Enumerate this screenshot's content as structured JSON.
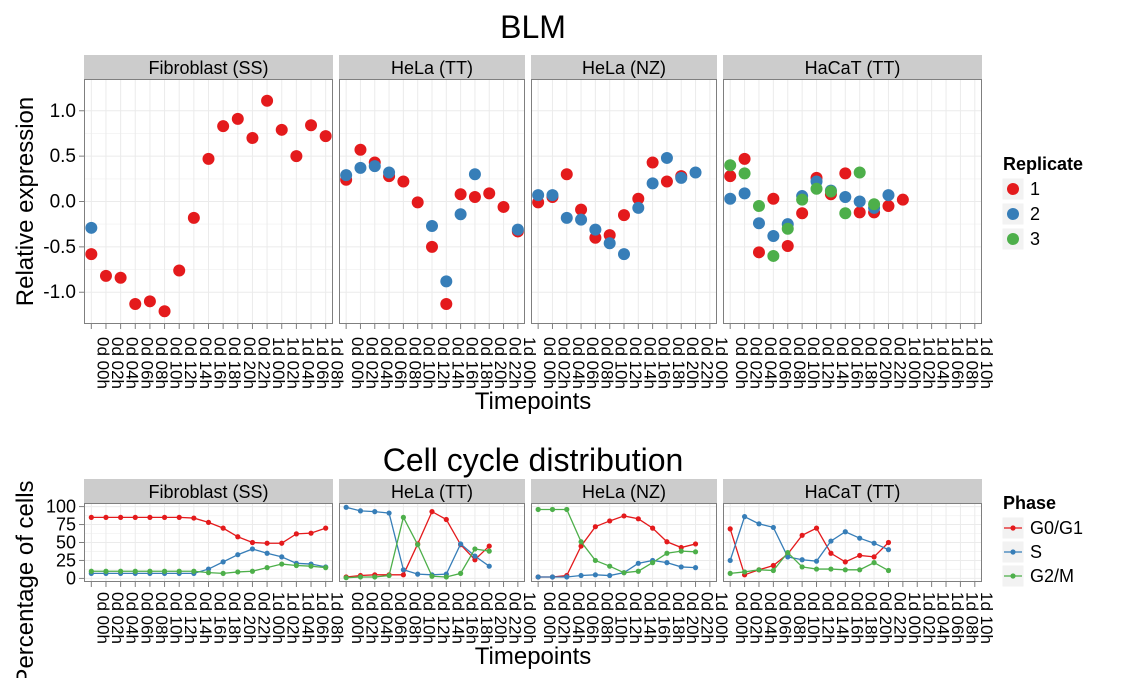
{
  "colors": {
    "red": "#E41A1C",
    "blue": "#377EB8",
    "green": "#4DAF4A",
    "strip": "#CCCCCC",
    "panel_border": "#7F7F7F",
    "grid_major": "#EBEBEB",
    "grid_minor": "#F5F5F5"
  },
  "chart_data": [
    {
      "type": "scatter",
      "title": "BLM",
      "xlabel": "Timepoints",
      "ylabel": "Relative expression",
      "ylim": [
        -1.35,
        1.35
      ],
      "yticks": [
        -1.0,
        -0.5,
        0.0,
        0.5,
        1.0
      ],
      "ytick_labels": [
        "-1.0",
        "-0.5",
        "0.0",
        "0.5",
        "1.0"
      ],
      "grid": true,
      "legend": {
        "title": "Replicate",
        "position": "right",
        "items": [
          "1",
          "2",
          "3"
        ]
      },
      "panels": [
        {
          "name": "Fibroblast (SS)",
          "x": [
            "0d 00h",
            "0d 02h",
            "0d 04h",
            "0d 06h",
            "0d 08h",
            "0d 10h",
            "0d 12h",
            "0d 14h",
            "0d 16h",
            "0d 18h",
            "0d 20h",
            "0d 22h",
            "1d 00h",
            "1d 02h",
            "1d 04h",
            "1d 06h",
            "1d 08h"
          ],
          "series": [
            {
              "name": "1",
              "values": [
                -0.58,
                -0.82,
                -0.84,
                -1.13,
                -1.1,
                -1.21,
                -0.76,
                -0.18,
                0.47,
                0.83,
                0.91,
                0.7,
                1.11,
                0.79,
                0.5,
                0.84,
                0.72
              ]
            },
            {
              "name": "2",
              "values": [
                -0.29,
                null,
                null,
                null,
                null,
                null,
                null,
                null,
                null,
                null,
                null,
                null,
                null,
                null,
                null,
                null,
                null
              ]
            },
            {
              "name": "3",
              "values": []
            }
          ]
        },
        {
          "name": "HeLa (TT)",
          "x": [
            "0d 00h",
            "0d 02h",
            "0d 04h",
            "0d 06h",
            "0d 08h",
            "0d 10h",
            "0d 12h",
            "0d 14h",
            "0d 16h",
            "0d 18h",
            "0d 20h",
            "0d 22h",
            "1d 00h"
          ],
          "series": [
            {
              "name": "1",
              "values": [
                0.24,
                0.57,
                0.43,
                0.28,
                0.22,
                -0.01,
                -0.5,
                -1.13,
                0.08,
                0.05,
                0.09,
                -0.06,
                -0.33
              ]
            },
            {
              "name": "2",
              "values": [
                0.29,
                0.37,
                0.39,
                0.32,
                null,
                null,
                -0.27,
                -0.88,
                -0.14,
                0.3,
                null,
                null,
                -0.31
              ]
            },
            {
              "name": "3",
              "values": []
            }
          ]
        },
        {
          "name": "HeLa (NZ)",
          "x": [
            "0d 00h",
            "0d 02h",
            "0d 04h",
            "0d 06h",
            "0d 08h",
            "0d 10h",
            "0d 12h",
            "0d 14h",
            "0d 16h",
            "0d 18h",
            "0d 20h",
            "0d 22h",
            "1d 00h"
          ],
          "series": [
            {
              "name": "1",
              "values": [
                -0.01,
                0.05,
                0.3,
                -0.09,
                -0.4,
                -0.37,
                -0.15,
                0.03,
                0.43,
                0.22,
                0.28,
                null,
                null
              ]
            },
            {
              "name": "2",
              "values": [
                0.07,
                0.07,
                -0.18,
                -0.2,
                -0.31,
                -0.46,
                -0.58,
                -0.07,
                0.2,
                0.48,
                0.26,
                0.32,
                null
              ]
            },
            {
              "name": "3",
              "values": []
            }
          ]
        },
        {
          "name": "HaCaT (TT)",
          "x": [
            "0d 00h",
            "0d 02h",
            "0d 04h",
            "0d 06h",
            "0d 08h",
            "0d 10h",
            "0d 12h",
            "0d 14h",
            "0d 16h",
            "0d 18h",
            "0d 20h",
            "0d 22h",
            "1d 00h",
            "1d 02h",
            "1d 04h",
            "1d 06h",
            "1d 08h",
            "1d 10h"
          ],
          "series": [
            {
              "name": "1",
              "values": [
                0.28,
                0.47,
                -0.56,
                0.03,
                -0.49,
                -0.13,
                0.26,
                0.08,
                0.31,
                -0.12,
                -0.12,
                -0.05,
                0.02,
                null,
                null,
                null,
                null,
                null
              ]
            },
            {
              "name": "2",
              "values": [
                0.03,
                0.09,
                -0.24,
                -0.38,
                -0.25,
                0.06,
                0.22,
                0.12,
                0.05,
                0.0,
                -0.07,
                0.07,
                null,
                null,
                null,
                null,
                null,
                null
              ]
            },
            {
              "name": "3",
              "values": [
                0.4,
                0.31,
                -0.05,
                -0.6,
                -0.3,
                0.02,
                0.14,
                0.11,
                -0.13,
                0.32,
                -0.03,
                null,
                null,
                null,
                null,
                null,
                null,
                null
              ]
            }
          ]
        }
      ]
    },
    {
      "type": "line",
      "title": "Cell cycle distribution",
      "xlabel": "Timepoints",
      "ylabel": "Percentage of cells",
      "ylim": [
        -5,
        105
      ],
      "yticks": [
        0,
        25,
        50,
        75,
        100
      ],
      "ytick_labels": [
        "0",
        "25",
        "50",
        "75",
        "100"
      ],
      "grid": true,
      "legend": {
        "title": "Phase",
        "position": "right",
        "items": [
          "G0/G1",
          "S",
          "G2/M"
        ]
      },
      "panels": [
        {
          "name": "Fibroblast (SS)",
          "x": [
            "0d 00h",
            "0d 02h",
            "0d 04h",
            "0d 06h",
            "0d 08h",
            "0d 10h",
            "0d 12h",
            "0d 14h",
            "0d 16h",
            "0d 18h",
            "0d 20h",
            "0d 22h",
            "1d 00h",
            "1d 02h",
            "1d 04h",
            "1d 06h",
            "1d 08h"
          ],
          "series": [
            {
              "name": "G0/G1",
              "values": [
                85,
                85,
                85,
                85,
                85,
                85,
                85,
                84,
                78,
                70,
                58,
                50,
                49,
                49,
                62,
                63,
                70
              ]
            },
            {
              "name": "S",
              "values": [
                7,
                7,
                7,
                7,
                7,
                7,
                7,
                7,
                13,
                23,
                33,
                41,
                35,
                30,
                21,
                20,
                16
              ]
            },
            {
              "name": "G2/M",
              "values": [
                10,
                10,
                10,
                10,
                10,
                10,
                10,
                10,
                8,
                7,
                9,
                10,
                15,
                20,
                18,
                17,
                15
              ]
            }
          ]
        },
        {
          "name": "HeLa (TT)",
          "x": [
            "0d 00h",
            "0d 02h",
            "0d 04h",
            "0d 06h",
            "0d 08h",
            "0d 10h",
            "0d 12h",
            "0d 14h",
            "0d 16h",
            "0d 18h",
            "0d 20h",
            "0d 22h",
            "1d 00h"
          ],
          "series": [
            {
              "name": "G0/G1",
              "values": [
                2,
                4,
                5,
                5,
                5,
                48,
                93,
                82,
                47,
                26,
                45
              ]
            },
            {
              "name": "S",
              "values": [
                99,
                94,
                93,
                91,
                12,
                6,
                5,
                6,
                48,
                31,
                17
              ]
            },
            {
              "name": "G2/M",
              "values": [
                1,
                2,
                2,
                4,
                85,
                47,
                3,
                2,
                7,
                41,
                38
              ]
            }
          ]
        },
        {
          "name": "HeLa (NZ)",
          "x": [
            "0d 00h",
            "0d 02h",
            "0d 04h",
            "0d 06h",
            "0d 08h",
            "0d 10h",
            "0d 12h",
            "0d 14h",
            "0d 16h",
            "0d 18h",
            "0d 20h",
            "0d 22h",
            "1d 00h"
          ],
          "series": [
            {
              "name": "G0/G1",
              "values": [
                2,
                2,
                4,
                45,
                72,
                80,
                87,
                83,
                70,
                51,
                43,
                48
              ]
            },
            {
              "name": "S",
              "values": [
                2,
                2,
                2,
                4,
                5,
                4,
                8,
                21,
                25,
                22,
                16,
                15
              ]
            },
            {
              "name": "G2/M",
              "values": [
                96,
                96,
                96,
                51,
                25,
                17,
                8,
                10,
                22,
                35,
                38,
                37
              ]
            }
          ]
        },
        {
          "name": "HaCaT (TT)",
          "x": [
            "0d 00h",
            "0d 02h",
            "0d 04h",
            "0d 06h",
            "0d 08h",
            "0d 10h",
            "0d 12h",
            "0d 14h",
            "0d 16h",
            "0d 18h",
            "0d 20h",
            "0d 22h",
            "1d 00h",
            "1d 02h",
            "1d 04h",
            "1d 06h",
            "1d 08h",
            "1d 10h"
          ],
          "series": [
            {
              "name": "G0/G1",
              "values": [
                69,
                5,
                12,
                18,
                34,
                60,
                70,
                35,
                23,
                32,
                30,
                50
              ]
            },
            {
              "name": "S",
              "values": [
                25,
                86,
                76,
                71,
                30,
                26,
                24,
                52,
                65,
                56,
                49,
                40
              ]
            },
            {
              "name": "G2/M",
              "values": [
                7,
                9,
                12,
                11,
                36,
                16,
                13,
                13,
                12,
                12,
                22,
                11
              ]
            }
          ]
        }
      ]
    }
  ]
}
